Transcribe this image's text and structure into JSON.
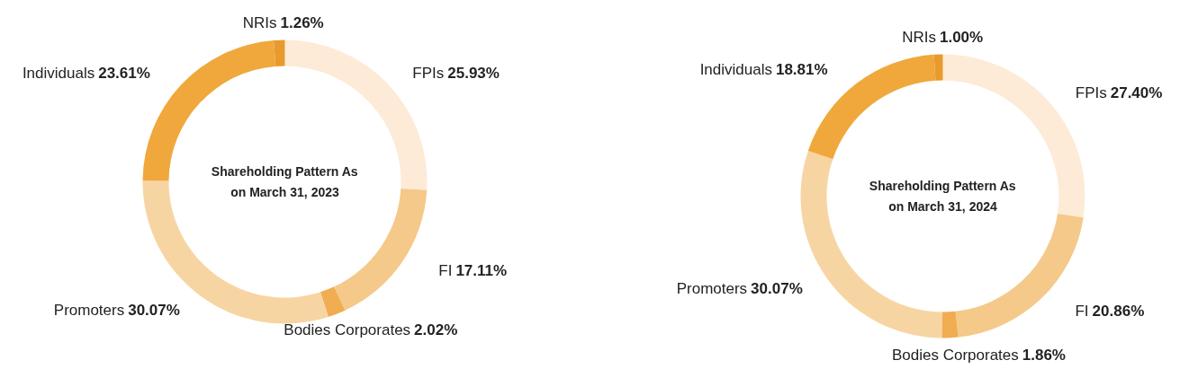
{
  "chart_data": [
    {
      "type": "donut",
      "title": "Shareholding Pattern As\non March 31, 2023",
      "categories": [
        "FPIs",
        "FI",
        "Bodies Corporates",
        "Promoters",
        "Individuals",
        "NRIs"
      ],
      "values": [
        25.93,
        17.11,
        2.02,
        30.07,
        23.61,
        1.26
      ],
      "value_labels": [
        "25.93%",
        "17.11%",
        "2.02%",
        "30.07%",
        "23.61%",
        "1.26%"
      ],
      "colors": [
        "#fdebd7",
        "#f5c98a",
        "#f0ad52",
        "#f7d5a3",
        "#f0a83c",
        "#e99a2c"
      ]
    },
    {
      "type": "donut",
      "title": "Shareholding Pattern As\non March 31, 2024",
      "categories": [
        "FPIs",
        "FI",
        "Bodies Corporates",
        "Promoters",
        "Individuals",
        "NRIs"
      ],
      "values": [
        27.4,
        20.86,
        1.86,
        30.07,
        18.81,
        1.0
      ],
      "value_labels": [
        "27.40%",
        "20.86%",
        "1.86%",
        "30.07%",
        "18.81%",
        "1.00%"
      ],
      "colors": [
        "#fdebd7",
        "#f5c98a",
        "#f0ad52",
        "#f7d5a3",
        "#f0a83c",
        "#e99a2c"
      ]
    }
  ]
}
